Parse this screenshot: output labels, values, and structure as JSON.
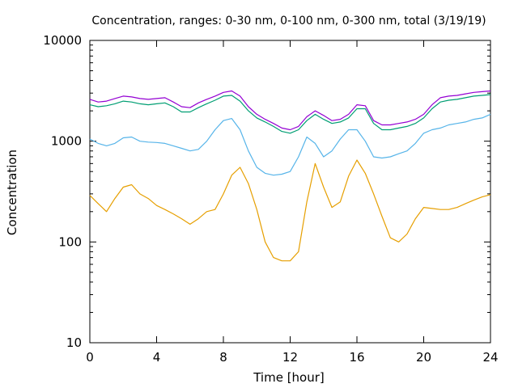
{
  "chart_data": {
    "type": "line",
    "title": "Concentration, ranges: 0-30 nm, 0-100 nm, 0-300 nm, total (3/19/19)",
    "xlabel": "Time [hour]",
    "ylabel": "Concentration",
    "xlim": [
      0,
      24
    ],
    "ylim": [
      10,
      10000
    ],
    "yscale": "log",
    "grid": false,
    "legend": "none",
    "xticks": [
      "0",
      "4",
      "8",
      "12",
      "16",
      "20",
      "24"
    ],
    "yticks": [
      "10",
      "100",
      "1000",
      "10000"
    ],
    "series": [
      {
        "color": "#e69f00",
        "x": [
          0,
          0.5,
          1,
          1.5,
          2,
          2.5,
          3,
          3.5,
          4,
          4.5,
          5,
          5.5,
          6,
          6.5,
          7,
          7.5,
          8,
          8.5,
          9,
          9.5,
          10,
          10.5,
          11,
          11.5,
          12,
          12.5,
          13,
          13.5,
          14,
          14.5,
          15,
          15.5,
          16,
          16.5,
          17,
          17.5,
          18,
          18.5,
          19,
          19.5,
          20,
          20.5,
          21,
          21.5,
          22,
          22.5,
          23,
          23.5,
          24
        ],
        "y": [
          290,
          240,
          200,
          270,
          350,
          370,
          300,
          270,
          230,
          210,
          190,
          170,
          150,
          170,
          200,
          210,
          300,
          460,
          550,
          380,
          210,
          100,
          70,
          65,
          65,
          80,
          250,
          600,
          350,
          220,
          250,
          450,
          650,
          480,
          300,
          180,
          110,
          100,
          120,
          170,
          220,
          215,
          210,
          210,
          220,
          240,
          260,
          280,
          295
        ]
      },
      {
        "color": "#56b4e9",
        "x": [
          0,
          0.5,
          1,
          1.5,
          2,
          2.5,
          3,
          3.5,
          4,
          4.5,
          5,
          5.5,
          6,
          6.5,
          7,
          7.5,
          8,
          8.5,
          9,
          9.5,
          10,
          10.5,
          11,
          11.5,
          12,
          12.5,
          13,
          13.5,
          14,
          14.5,
          15,
          15.5,
          16,
          16.5,
          17,
          17.5,
          18,
          18.5,
          19,
          19.5,
          20,
          20.5,
          21,
          21.5,
          22,
          22.5,
          23,
          23.5,
          24
        ],
        "y": [
          1050,
          950,
          900,
          950,
          1080,
          1100,
          1000,
          980,
          970,
          950,
          900,
          850,
          800,
          830,
          1000,
          1300,
          1600,
          1680,
          1300,
          800,
          550,
          480,
          460,
          470,
          500,
          700,
          1100,
          950,
          700,
          800,
          1050,
          1300,
          1300,
          1000,
          700,
          680,
          700,
          750,
          800,
          950,
          1200,
          1300,
          1350,
          1450,
          1500,
          1550,
          1650,
          1700,
          1850
        ]
      },
      {
        "color": "#009e73",
        "x": [
          0,
          0.5,
          1,
          1.5,
          2,
          2.5,
          3,
          3.5,
          4,
          4.5,
          5,
          5.5,
          6,
          6.5,
          7,
          7.5,
          8,
          8.5,
          9,
          9.5,
          10,
          10.5,
          11,
          11.5,
          12,
          12.5,
          13,
          13.5,
          14,
          14.5,
          15,
          15.5,
          16,
          16.5,
          17,
          17.5,
          18,
          18.5,
          19,
          19.5,
          20,
          20.5,
          21,
          21.5,
          22,
          22.5,
          23,
          23.5,
          24
        ],
        "y": [
          2300,
          2200,
          2250,
          2350,
          2500,
          2450,
          2350,
          2300,
          2350,
          2400,
          2200,
          1950,
          1950,
          2150,
          2350,
          2550,
          2800,
          2850,
          2500,
          2000,
          1700,
          1550,
          1400,
          1250,
          1200,
          1300,
          1600,
          1850,
          1650,
          1500,
          1550,
          1700,
          2100,
          2100,
          1500,
          1300,
          1300,
          1350,
          1400,
          1500,
          1700,
          2100,
          2450,
          2550,
          2600,
          2700,
          2800,
          2850,
          2900
        ]
      },
      {
        "color": "#9400d3",
        "x": [
          0,
          0.5,
          1,
          1.5,
          2,
          2.5,
          3,
          3.5,
          4,
          4.5,
          5,
          5.5,
          6,
          6.5,
          7,
          7.5,
          8,
          8.5,
          9,
          9.5,
          10,
          10.5,
          11,
          11.5,
          12,
          12.5,
          13,
          13.5,
          14,
          14.5,
          15,
          15.5,
          16,
          16.5,
          17,
          17.5,
          18,
          18.5,
          19,
          19.5,
          20,
          20.5,
          21,
          21.5,
          22,
          22.5,
          23,
          23.5,
          24
        ],
        "y": [
          2600,
          2450,
          2500,
          2650,
          2800,
          2750,
          2650,
          2600,
          2650,
          2700,
          2450,
          2200,
          2150,
          2400,
          2600,
          2800,
          3050,
          3150,
          2800,
          2200,
          1850,
          1650,
          1500,
          1350,
          1300,
          1400,
          1750,
          2000,
          1800,
          1600,
          1650,
          1850,
          2300,
          2250,
          1600,
          1450,
          1450,
          1500,
          1550,
          1650,
          1850,
          2300,
          2700,
          2800,
          2850,
          2950,
          3050,
          3100,
          3150
        ]
      }
    ]
  }
}
